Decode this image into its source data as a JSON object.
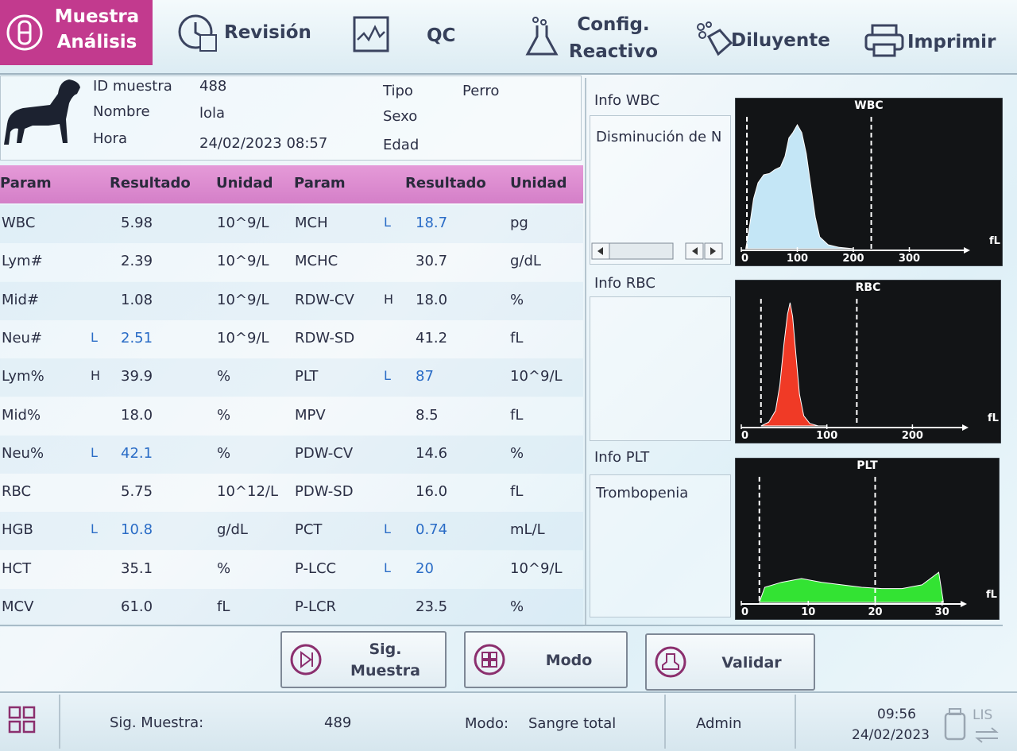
{
  "nav": {
    "items": [
      {
        "lines": [
          "Muestra",
          "Análisis"
        ]
      },
      {
        "lines": [
          "Revisión"
        ]
      },
      {
        "lines": [
          "QC"
        ]
      },
      {
        "lines": [
          "Config.",
          "Reactivo"
        ]
      },
      {
        "lines": [
          "Diluyente"
        ]
      },
      {
        "lines": [
          "Imprimir"
        ]
      }
    ]
  },
  "patient": {
    "fields": [
      {
        "label": "ID muestra",
        "value": "488"
      },
      {
        "label": "Nombre",
        "value": "lola"
      },
      {
        "label": "Hora",
        "value": "24/02/2023 08:57"
      },
      {
        "label": "Tipo",
        "value": "Perro"
      },
      {
        "label": "Sexo"
      },
      {
        "label": "Edad"
      }
    ]
  },
  "table": {
    "header": [
      "Param",
      "Resultado",
      "Unidad",
      "Param",
      "Resultado",
      "Unidad"
    ],
    "rows": [
      [
        {
          "param": "WBC",
          "result": "5.98",
          "unit": "10^9/L"
        },
        {
          "param": "MCH",
          "flag": "L",
          "result": "18.7",
          "unit": "pg"
        }
      ],
      [
        {
          "param": "Lym#",
          "result": "2.39",
          "unit": "10^9/L"
        },
        {
          "param": "MCHC",
          "result": "30.7",
          "unit": "g/dL"
        }
      ],
      [
        {
          "param": "Mid#",
          "result": "1.08",
          "unit": "10^9/L"
        },
        {
          "param": "RDW-CV",
          "flag": "H",
          "result": "18.0",
          "unit": "%"
        }
      ],
      [
        {
          "param": "Neu#",
          "flag": "L",
          "result": "2.51",
          "unit": "10^9/L"
        },
        {
          "param": "RDW-SD",
          "result": "41.2",
          "unit": "fL"
        }
      ],
      [
        {
          "param": "Lym%",
          "flag": "H",
          "result": "39.9",
          "unit": "%"
        },
        {
          "param": "PLT",
          "flag": "L",
          "result": "87",
          "unit": "10^9/L"
        }
      ],
      [
        {
          "param": "Mid%",
          "result": "18.0",
          "unit": "%"
        },
        {
          "param": "MPV",
          "result": "8.5",
          "unit": "fL"
        }
      ],
      [
        {
          "param": "Neu%",
          "flag": "L",
          "result": "42.1",
          "unit": "%"
        },
        {
          "param": "PDW-CV",
          "result": "14.6",
          "unit": "%"
        }
      ],
      [
        {
          "param": "RBC",
          "result": "5.75",
          "unit": "10^12/L"
        },
        {
          "param": "PDW-SD",
          "result": "16.0",
          "unit": "fL"
        }
      ],
      [
        {
          "param": "HGB",
          "flag": "L",
          "result": "10.8",
          "unit": "g/dL"
        },
        {
          "param": "PCT",
          "flag": "L",
          "result": "0.74",
          "unit": "mL/L"
        }
      ],
      [
        {
          "param": "HCT",
          "result": "35.1",
          "unit": "%"
        },
        {
          "param": "P-LCC",
          "flag": "L",
          "result": "20",
          "unit": "10^9/L"
        }
      ],
      [
        {
          "param": "MCV",
          "result": "61.0",
          "unit": "fL"
        },
        {
          "param": "P-LCR",
          "result": "23.5",
          "unit": "%"
        }
      ]
    ]
  },
  "info": [
    {
      "title": "Info WBC",
      "text": "Disminución de N"
    },
    {
      "title": "Info RBC"
    },
    {
      "title": "Info PLT",
      "text": "Trombopenia"
    }
  ],
  "histograms": [
    {
      "type": "area",
      "title": "WBC",
      "unit": "fL",
      "color": "#c4e6f6",
      "xlim": [
        0,
        400
      ],
      "xticks": [
        0,
        100,
        200,
        300
      ],
      "ylim": [
        0,
        100
      ],
      "markers": [
        10,
        232
      ],
      "x": [
        8,
        15,
        22,
        30,
        40,
        50,
        60,
        70,
        78,
        85,
        92,
        100,
        108,
        116,
        124,
        132,
        140,
        155,
        175,
        200
      ],
      "values": [
        0,
        18,
        38,
        50,
        56,
        57,
        60,
        62,
        70,
        84,
        88,
        94,
        88,
        72,
        48,
        24,
        9,
        3,
        1,
        0
      ]
    },
    {
      "type": "area",
      "title": "RBC",
      "unit": "fL",
      "color": "#f03a26",
      "xlim": [
        0,
        260
      ],
      "xticks": [
        0,
        100,
        200
      ],
      "ylim": [
        0,
        100
      ],
      "markers": [
        23,
        135
      ],
      "x": [
        23,
        32,
        40,
        45,
        50,
        54,
        57,
        60,
        64,
        68,
        73,
        80,
        90,
        100
      ],
      "values": [
        0,
        3,
        12,
        32,
        65,
        88,
        97,
        86,
        55,
        25,
        8,
        2,
        0,
        0
      ]
    },
    {
      "type": "area",
      "title": "PLT",
      "unit": "fL",
      "color": "#33e333",
      "xlim": [
        0,
        33
      ],
      "xticks": [
        0,
        10,
        20,
        30
      ],
      "ylim": [
        0,
        100
      ],
      "markers": [
        2.7,
        20
      ],
      "x": [
        2.7,
        3.5,
        6,
        9,
        12,
        15,
        18,
        21,
        24,
        27,
        29.5,
        30.2
      ],
      "values": [
        0,
        12,
        16,
        19,
        16,
        14,
        12,
        11,
        11,
        14,
        24,
        0
      ]
    }
  ],
  "buttons": [
    {
      "lines": [
        "Sig.",
        "Muestra"
      ]
    },
    {
      "lines": [
        "Modo"
      ]
    },
    {
      "lines": [
        "Validar"
      ]
    }
  ],
  "status": {
    "next_label": "Sig. Muestra:",
    "next_value": "489",
    "mode_label": "Modo:",
    "mode_value": "Sangre total",
    "user": "Admin",
    "time": "09:56",
    "date": "24/02/2023",
    "lis": "LIS"
  }
}
